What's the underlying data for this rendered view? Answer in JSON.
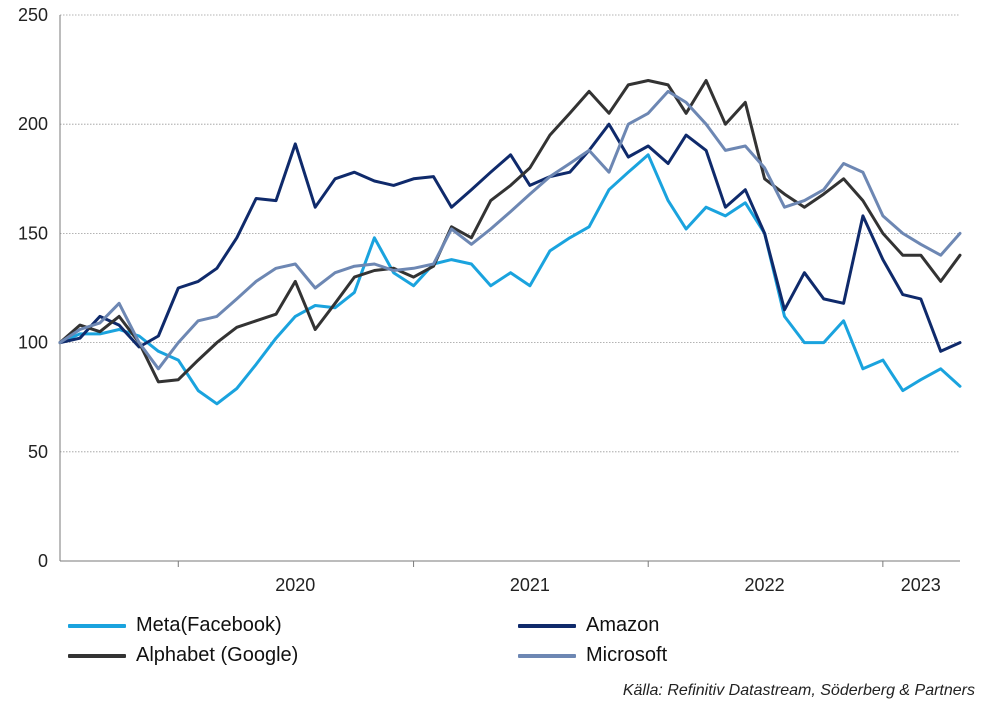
{
  "chart_data": {
    "type": "line",
    "ylim": [
      0,
      250
    ],
    "y_ticks": [
      0,
      50,
      100,
      150,
      200,
      250
    ],
    "x_range": [
      "2019-07-01",
      "2023-05-01"
    ],
    "x_tick_labels": [
      {
        "label": "2020",
        "date": "2020-07-01"
      },
      {
        "label": "2021",
        "date": "2021-07-01"
      },
      {
        "label": "2022",
        "date": "2022-07-01"
      },
      {
        "label": "2023",
        "date": "2023-03-01"
      }
    ],
    "grid": "horizontal",
    "legend_position": "bottom",
    "colors": {
      "Meta(Facebook)": "#1aa3de",
      "Amazon": "#0f2a6b",
      "Alphabet (Google)": "#333333",
      "Microsoft": "#6d87b3"
    },
    "series": [
      {
        "name": "Meta(Facebook)",
        "points": [
          [
            "2019-07-01",
            100
          ],
          [
            "2019-08-01",
            104
          ],
          [
            "2019-09-01",
            104
          ],
          [
            "2019-10-01",
            106
          ],
          [
            "2019-11-01",
            103
          ],
          [
            "2019-12-01",
            96
          ],
          [
            "2020-01-01",
            92
          ],
          [
            "2020-02-01",
            78
          ],
          [
            "2020-03-01",
            72
          ],
          [
            "2020-04-01",
            79
          ],
          [
            "2020-05-01",
            90
          ],
          [
            "2020-06-01",
            102
          ],
          [
            "2020-07-01",
            112
          ],
          [
            "2020-08-01",
            117
          ],
          [
            "2020-09-01",
            116
          ],
          [
            "2020-10-01",
            123
          ],
          [
            "2020-11-01",
            148
          ],
          [
            "2020-12-01",
            132
          ],
          [
            "2021-01-01",
            126
          ],
          [
            "2021-02-01",
            136
          ],
          [
            "2021-03-01",
            138
          ],
          [
            "2021-04-01",
            136
          ],
          [
            "2021-05-01",
            126
          ],
          [
            "2021-06-01",
            132
          ],
          [
            "2021-07-01",
            126
          ],
          [
            "2021-08-01",
            142
          ],
          [
            "2021-09-01",
            148
          ],
          [
            "2021-10-01",
            153
          ],
          [
            "2021-11-01",
            170
          ],
          [
            "2021-12-01",
            178
          ],
          [
            "2022-01-01",
            186
          ],
          [
            "2022-02-01",
            165
          ],
          [
            "2022-03-01",
            152
          ],
          [
            "2022-04-01",
            162
          ],
          [
            "2022-05-01",
            158
          ],
          [
            "2022-06-01",
            164
          ],
          [
            "2022-07-01",
            150
          ],
          [
            "2022-08-01",
            112
          ],
          [
            "2022-09-01",
            100
          ],
          [
            "2022-10-01",
            100
          ],
          [
            "2022-11-01",
            110
          ],
          [
            "2022-12-01",
            88
          ],
          [
            "2023-01-01",
            92
          ],
          [
            "2023-02-01",
            78
          ],
          [
            "2023-03-01",
            83
          ],
          [
            "2023-04-01",
            88
          ],
          [
            "2023-05-01",
            80
          ]
        ]
      },
      {
        "name": "Amazon",
        "points": [
          [
            "2019-07-01",
            100
          ],
          [
            "2019-08-01",
            102
          ],
          [
            "2019-09-01",
            112
          ],
          [
            "2019-10-01",
            108
          ],
          [
            "2019-11-01",
            98
          ],
          [
            "2019-12-01",
            103
          ],
          [
            "2020-01-01",
            125
          ],
          [
            "2020-02-01",
            128
          ],
          [
            "2020-03-01",
            134
          ],
          [
            "2020-04-01",
            148
          ],
          [
            "2020-05-01",
            166
          ],
          [
            "2020-06-01",
            165
          ],
          [
            "2020-07-01",
            191
          ],
          [
            "2020-08-01",
            162
          ],
          [
            "2020-09-01",
            175
          ],
          [
            "2020-10-01",
            178
          ],
          [
            "2020-11-01",
            174
          ],
          [
            "2020-12-01",
            172
          ],
          [
            "2021-01-01",
            175
          ],
          [
            "2021-02-01",
            176
          ],
          [
            "2021-03-01",
            162
          ],
          [
            "2021-04-01",
            170
          ],
          [
            "2021-05-01",
            178
          ],
          [
            "2021-06-01",
            186
          ],
          [
            "2021-07-01",
            172
          ],
          [
            "2021-08-01",
            176
          ],
          [
            "2021-09-01",
            178
          ],
          [
            "2021-10-01",
            188
          ],
          [
            "2021-11-01",
            200
          ],
          [
            "2021-12-01",
            185
          ],
          [
            "2022-01-01",
            190
          ],
          [
            "2022-02-01",
            182
          ],
          [
            "2022-03-01",
            195
          ],
          [
            "2022-04-01",
            188
          ],
          [
            "2022-05-01",
            162
          ],
          [
            "2022-06-01",
            170
          ],
          [
            "2022-07-01",
            150
          ],
          [
            "2022-08-01",
            115
          ],
          [
            "2022-09-01",
            132
          ],
          [
            "2022-10-01",
            120
          ],
          [
            "2022-11-01",
            118
          ],
          [
            "2022-12-01",
            158
          ],
          [
            "2023-01-01",
            138
          ],
          [
            "2023-02-01",
            122
          ],
          [
            "2023-03-01",
            120
          ],
          [
            "2023-04-01",
            96
          ],
          [
            "2023-05-01",
            100
          ]
        ]
      },
      {
        "name": "Alphabet (Google)",
        "points": [
          [
            "2019-07-01",
            100
          ],
          [
            "2019-08-01",
            108
          ],
          [
            "2019-09-01",
            105
          ],
          [
            "2019-10-01",
            112
          ],
          [
            "2019-11-01",
            100
          ],
          [
            "2019-12-01",
            82
          ],
          [
            "2020-01-01",
            83
          ],
          [
            "2020-02-01",
            92
          ],
          [
            "2020-03-01",
            100
          ],
          [
            "2020-04-01",
            107
          ],
          [
            "2020-05-01",
            110
          ],
          [
            "2020-06-01",
            113
          ],
          [
            "2020-07-01",
            128
          ],
          [
            "2020-08-01",
            106
          ],
          [
            "2020-09-01",
            118
          ],
          [
            "2020-10-01",
            130
          ],
          [
            "2020-11-01",
            133
          ],
          [
            "2020-12-01",
            134
          ],
          [
            "2021-01-01",
            130
          ],
          [
            "2021-02-01",
            135
          ],
          [
            "2021-03-01",
            153
          ],
          [
            "2021-04-01",
            148
          ],
          [
            "2021-05-01",
            165
          ],
          [
            "2021-06-01",
            172
          ],
          [
            "2021-07-01",
            180
          ],
          [
            "2021-08-01",
            195
          ],
          [
            "2021-09-01",
            205
          ],
          [
            "2021-10-01",
            215
          ],
          [
            "2021-11-01",
            205
          ],
          [
            "2021-12-01",
            218
          ],
          [
            "2022-01-01",
            220
          ],
          [
            "2022-02-01",
            218
          ],
          [
            "2022-03-01",
            205
          ],
          [
            "2022-04-01",
            220
          ],
          [
            "2022-05-01",
            200
          ],
          [
            "2022-06-01",
            210
          ],
          [
            "2022-07-01",
            175
          ],
          [
            "2022-08-01",
            168
          ],
          [
            "2022-09-01",
            162
          ],
          [
            "2022-10-01",
            168
          ],
          [
            "2022-11-01",
            175
          ],
          [
            "2022-12-01",
            165
          ],
          [
            "2023-01-01",
            150
          ],
          [
            "2023-02-01",
            140
          ],
          [
            "2023-03-01",
            140
          ],
          [
            "2023-04-01",
            128
          ],
          [
            "2023-05-01",
            140
          ]
        ]
      },
      {
        "name": "Microsoft",
        "points": [
          [
            "2019-07-01",
            100
          ],
          [
            "2019-08-01",
            106
          ],
          [
            "2019-09-01",
            109
          ],
          [
            "2019-10-01",
            118
          ],
          [
            "2019-11-01",
            100
          ],
          [
            "2019-12-01",
            88
          ],
          [
            "2020-01-01",
            100
          ],
          [
            "2020-02-01",
            110
          ],
          [
            "2020-03-01",
            112
          ],
          [
            "2020-04-01",
            120
          ],
          [
            "2020-05-01",
            128
          ],
          [
            "2020-06-01",
            134
          ],
          [
            "2020-07-01",
            136
          ],
          [
            "2020-08-01",
            125
          ],
          [
            "2020-09-01",
            132
          ],
          [
            "2020-10-01",
            135
          ],
          [
            "2020-11-01",
            136
          ],
          [
            "2020-12-01",
            133
          ],
          [
            "2021-01-01",
            134
          ],
          [
            "2021-02-01",
            136
          ],
          [
            "2021-03-01",
            152
          ],
          [
            "2021-04-01",
            145
          ],
          [
            "2021-05-01",
            152
          ],
          [
            "2021-06-01",
            160
          ],
          [
            "2021-07-01",
            168
          ],
          [
            "2021-08-01",
            176
          ],
          [
            "2021-09-01",
            182
          ],
          [
            "2021-10-01",
            188
          ],
          [
            "2021-11-01",
            178
          ],
          [
            "2021-12-01",
            200
          ],
          [
            "2022-01-01",
            205
          ],
          [
            "2022-02-01",
            215
          ],
          [
            "2022-03-01",
            210
          ],
          [
            "2022-04-01",
            200
          ],
          [
            "2022-05-01",
            188
          ],
          [
            "2022-06-01",
            190
          ],
          [
            "2022-07-01",
            180
          ],
          [
            "2022-08-01",
            162
          ],
          [
            "2022-09-01",
            165
          ],
          [
            "2022-10-01",
            170
          ],
          [
            "2022-11-01",
            182
          ],
          [
            "2022-12-01",
            178
          ],
          [
            "2023-01-01",
            158
          ],
          [
            "2023-02-01",
            150
          ],
          [
            "2023-03-01",
            145
          ],
          [
            "2023-04-01",
            140
          ],
          [
            "2023-05-01",
            150
          ]
        ]
      }
    ]
  },
  "legend": {
    "items": [
      {
        "label": "Meta(Facebook)",
        "color": "#1aa3de"
      },
      {
        "label": "Amazon",
        "color": "#0f2a6b"
      },
      {
        "label": "Alphabet (Google)",
        "color": "#333333"
      },
      {
        "label": "Microsoft",
        "color": "#6d87b3"
      }
    ]
  },
  "source": "Källa: Refinitiv Datastream, Söderberg & Partners"
}
